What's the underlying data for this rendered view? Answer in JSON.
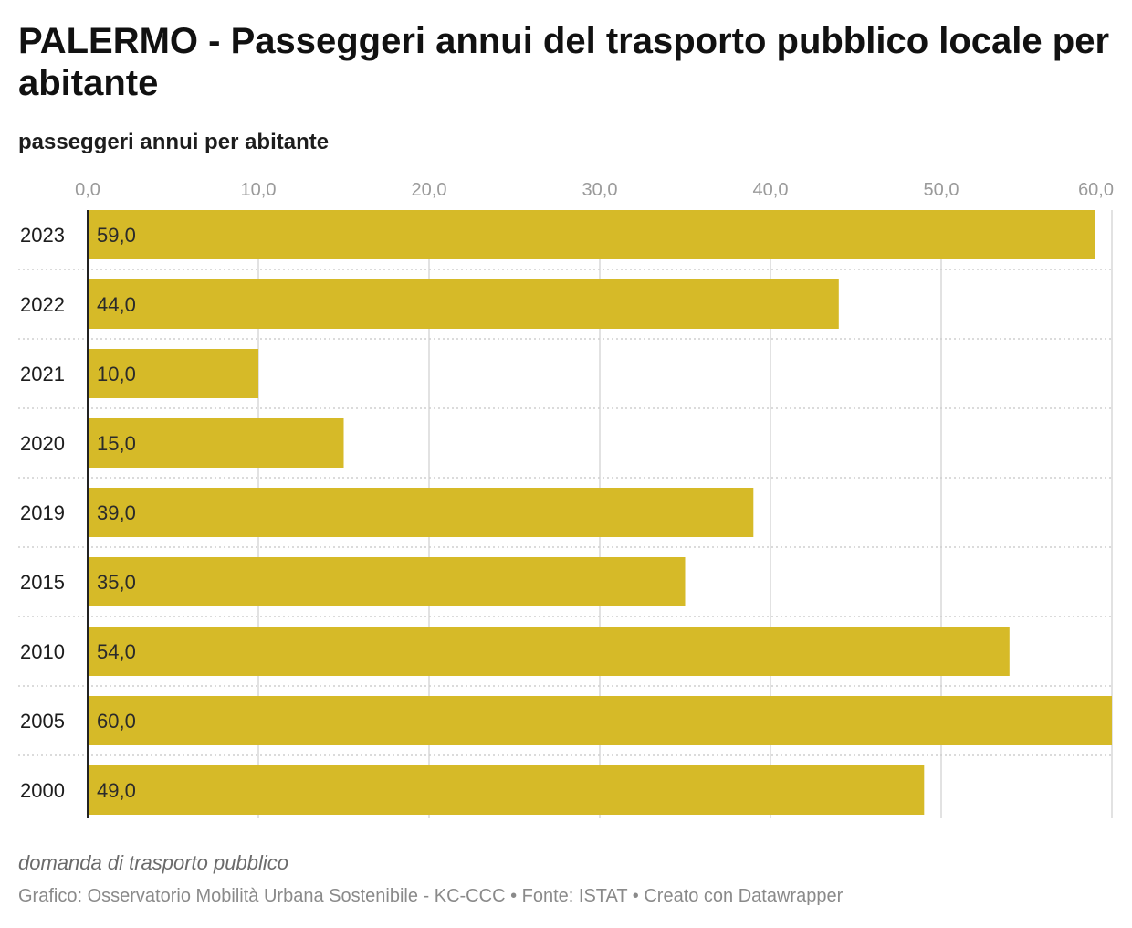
{
  "title": "PALERMO - Passeggeri annui del trasporto pubblico locale per abitante",
  "subtitle": "passeggeri annui per abitante",
  "note": "domanda di trasporto pubblico",
  "credits": "Grafico: Osservatorio Mobilità Urbana Sostenibile - KC-CCC • Fonte: ISTAT • Creato con Datawrapper",
  "colors": {
    "bar": "#d6ba28",
    "grid": "#d9d9d9",
    "tick": "#9a9a9a",
    "axis": "#222222"
  },
  "chart_data": {
    "type": "bar",
    "orientation": "horizontal",
    "categories": [
      "2023",
      "2022",
      "2021",
      "2020",
      "2019",
      "2015",
      "2010",
      "2005",
      "2000"
    ],
    "values": [
      59.0,
      44.0,
      10.0,
      15.0,
      39.0,
      35.0,
      54.0,
      60.0,
      49.0
    ],
    "value_labels": [
      "59,0",
      "44,0",
      "10,0",
      "15,0",
      "39,0",
      "35,0",
      "54,0",
      "60,0",
      "49,0"
    ],
    "xticks": [
      0,
      10,
      20,
      30,
      40,
      50,
      60
    ],
    "xtick_labels": [
      "0,0",
      "10,0",
      "20,0",
      "30,0",
      "40,0",
      "50,0",
      "60,0"
    ],
    "xlim": [
      0,
      60
    ],
    "xlabel": "",
    "ylabel": "",
    "grid": true,
    "tick_position": "top"
  }
}
